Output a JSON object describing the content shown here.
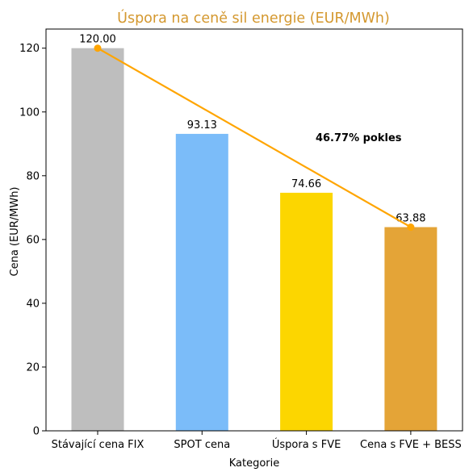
{
  "chart_data": {
    "type": "bar",
    "title": "Úspora na ceně sil energie (EUR/MWh)",
    "xlabel": "Kategorie",
    "ylabel": "Cena (EUR/MWh)",
    "categories": [
      "Stávající cena FIX",
      "SPOT cena",
      "Úspora s FVE",
      "Cena s FVE + BESS"
    ],
    "values": [
      120.0,
      93.13,
      74.66,
      63.88
    ],
    "value_labels": [
      "120.00",
      "93.13",
      "74.66",
      "63.88"
    ],
    "bar_colors": [
      "#bebebe",
      "#7bbcf9",
      "#fcd600",
      "#e4a437"
    ],
    "ylim": [
      0,
      126
    ],
    "yticks": [
      0,
      20,
      40,
      60,
      80,
      100,
      120
    ],
    "grid": false,
    "trend_line": {
      "from_category": "Stávající cena FIX",
      "to_category": "Cena s FVE + BESS",
      "from_value": 120.0,
      "to_value": 63.88,
      "color": "#ffa500"
    },
    "annotation": {
      "text": "46.77% pokles",
      "x_category_position": 2.5,
      "y_value": 92
    },
    "colors": {
      "title": "#d4982f",
      "text": "#000000"
    }
  }
}
